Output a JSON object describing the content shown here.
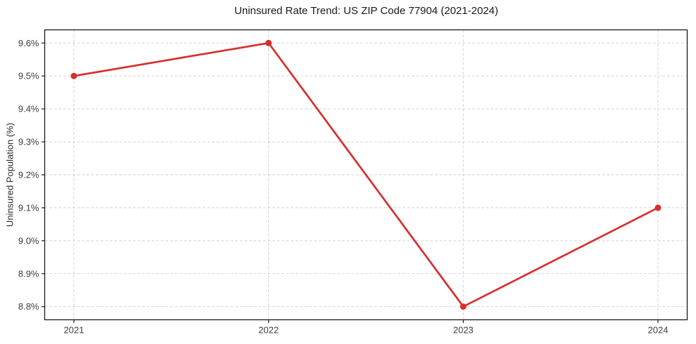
{
  "chart_data": {
    "type": "line",
    "title": "Uninsured Rate Trend: US ZIP Code 77904 (2021-2024)",
    "xlabel": "",
    "ylabel": "Uninsured Population (%)",
    "x": [
      2021,
      2022,
      2023,
      2024
    ],
    "x_tick_labels": [
      "2021",
      "2022",
      "2023",
      "2024"
    ],
    "series": [
      {
        "name": "Uninsured rate",
        "values": [
          9.5,
          9.6,
          8.8,
          9.1
        ]
      }
    ],
    "y_ticks": [
      8.8,
      8.9,
      9.0,
      9.1,
      9.2,
      9.3,
      9.4,
      9.5,
      9.6
    ],
    "y_tick_labels": [
      "8.8%",
      "8.9%",
      "9.0%",
      "9.1%",
      "9.2%",
      "9.3%",
      "9.4%",
      "9.5%",
      "9.6%"
    ],
    "xlim": [
      2020.85,
      2024.15
    ],
    "ylim": [
      8.76,
      9.64
    ],
    "grid": true,
    "grid_style": "dashed",
    "legend": "none",
    "colors": {
      "line": "#d62f2f",
      "marker": "#d62f2f",
      "grid": "#d3d3d3",
      "axis": "#1a1a1a",
      "tick_label": "#3d3d3d",
      "background": "#ffffff"
    }
  }
}
